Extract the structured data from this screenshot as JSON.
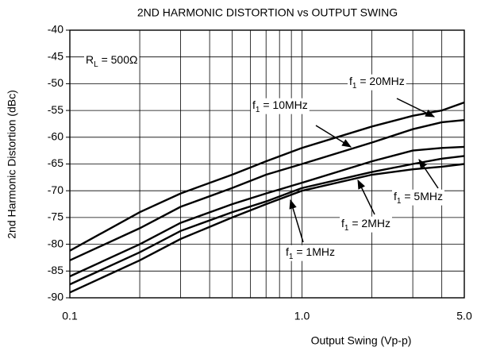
{
  "chart_data": {
    "type": "line",
    "title": "2ND HARMONIC DISTORTION vs OUTPUT SWING",
    "x_label": "Output Swing (Vp-p)",
    "y_label": "2nd Harmonic Distortion (dBc)",
    "x_log": true,
    "grid": true,
    "x": [
      0.1,
      0.2,
      0.3,
      0.5,
      0.7,
      1,
      2,
      3,
      4,
      5
    ],
    "series": [
      {
        "name": "20MHz",
        "color": "#000000",
        "values": [
          -81.2,
          -74,
          -70.5,
          -67,
          -64.5,
          -62,
          -58,
          -56,
          -55,
          -53.5
        ]
      },
      {
        "name": "10MHz",
        "color": "#000000",
        "values": [
          -83,
          -77,
          -73,
          -69.5,
          -67,
          -65,
          -61,
          -58.5,
          -57.2,
          -56.8
        ]
      },
      {
        "name": "5MHz",
        "color": "#000000",
        "values": [
          -86,
          -80,
          -76,
          -72.5,
          -70.5,
          -68.5,
          -64.5,
          -62.5,
          -62,
          -61.8
        ]
      },
      {
        "name": "2MHz",
        "color": "#000000",
        "values": [
          -87.5,
          -81.5,
          -77.5,
          -74,
          -72,
          -69.5,
          -66.5,
          -65,
          -64,
          -63.5
        ]
      },
      {
        "name": "1MHz",
        "color": "#000000",
        "values": [
          -89,
          -83,
          -79,
          -75,
          -72.5,
          -70,
          -67,
          -66,
          -65.5,
          -65
        ]
      }
    ],
    "annotations": [
      {
        "main": "R",
        "sub": "L",
        "rest": " = 500Ω"
      },
      {
        "main": "f",
        "sub": "1",
        "rest": " = 20MHz"
      },
      {
        "main": "f",
        "sub": "1",
        "rest": " = 10MHz"
      },
      {
        "main": "f",
        "sub": "1",
        "rest": " = 5MHz"
      },
      {
        "main": "f",
        "sub": "1",
        "rest": " = 2MHz"
      },
      {
        "main": "f",
        "sub": "1",
        "rest": " = 1MHz"
      }
    ],
    "xlim": [
      0.1,
      5
    ],
    "xticks": [
      0.1,
      {
        "value": 1,
        "label": "1.0"
      },
      {
        "value": 5,
        "label": "5.0"
      }
    ],
    "xminorticks": [
      0.2,
      0.3,
      0.4,
      0.5,
      0.6,
      0.7,
      0.8,
      0.9,
      2,
      3,
      4
    ],
    "ylim": [
      -90,
      -40
    ],
    "yticks": [
      -40,
      -45,
      -50,
      -55,
      -60,
      -65,
      -70,
      -75,
      -80,
      -85,
      -90
    ]
  }
}
